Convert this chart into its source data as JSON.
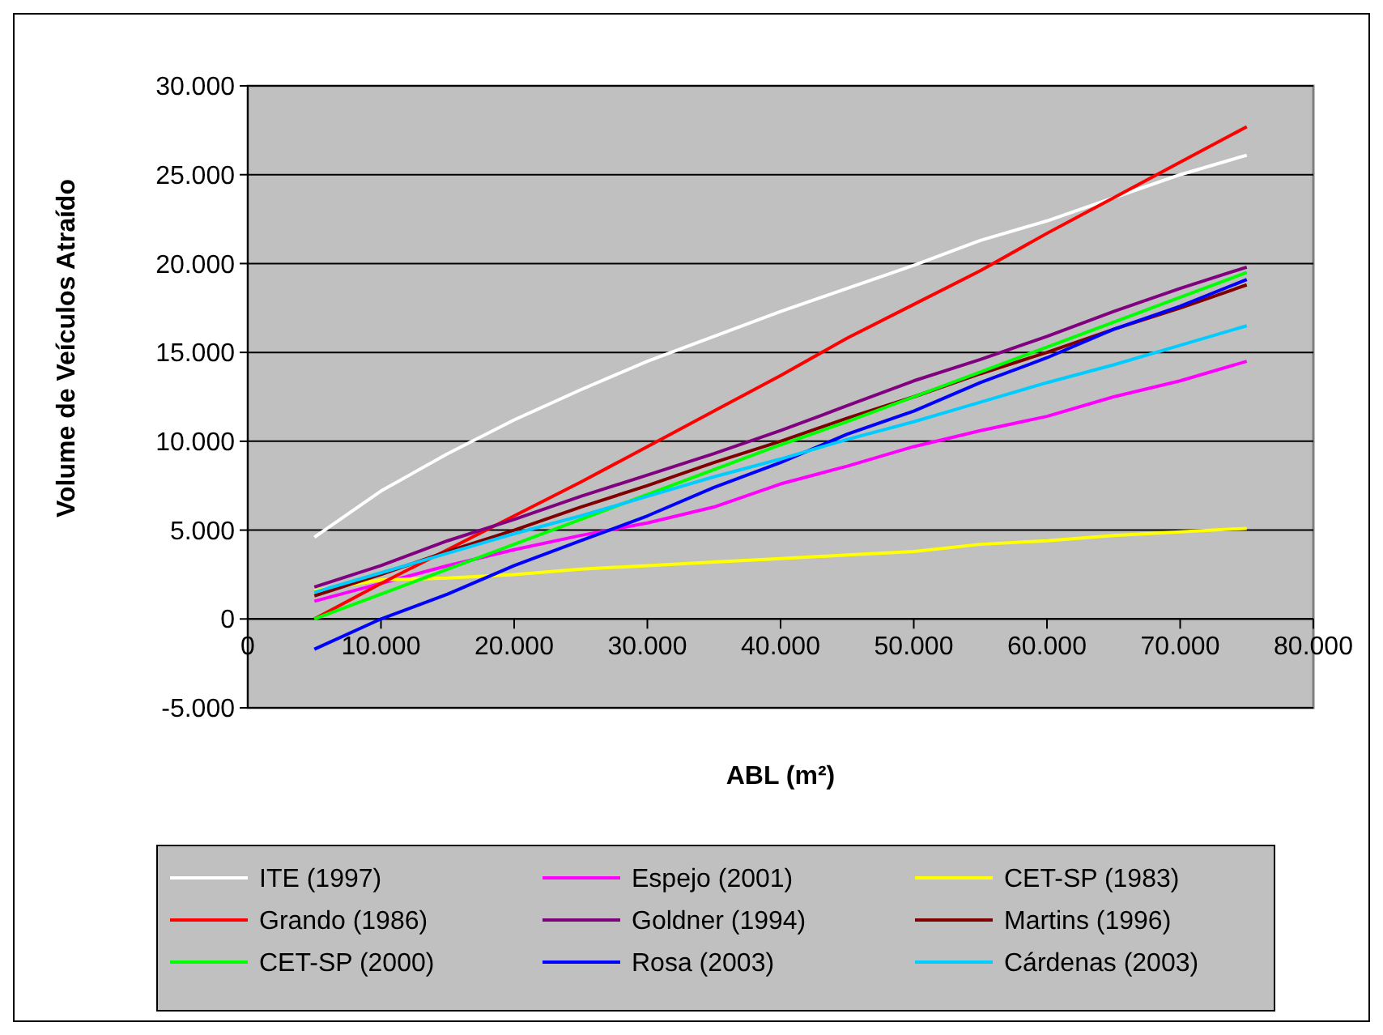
{
  "chart_data": {
    "type": "line",
    "xlabel": "ABL (m²)",
    "ylabel": "Volume de Veículos Atraído",
    "x": [
      5000,
      10000,
      15000,
      20000,
      25000,
      30000,
      35000,
      40000,
      45000,
      50000,
      55000,
      60000,
      65000,
      70000,
      75000
    ],
    "xlim": [
      0,
      80000
    ],
    "xticks": [
      0,
      {
        "value": 10000,
        "label": "10.000"
      },
      {
        "value": 20000,
        "label": "20.000"
      },
      {
        "value": 30000,
        "label": "30.000"
      },
      {
        "value": 40000,
        "label": "40.000"
      },
      {
        "value": 50000,
        "label": "50.000"
      },
      {
        "value": 60000,
        "label": "60.000"
      },
      {
        "value": 70000,
        "label": "70.000"
      },
      {
        "value": 80000,
        "label": "80.000"
      }
    ],
    "ylim": [
      -5000,
      30000
    ],
    "yticks": [
      {
        "value": -5000,
        "label": "-5.000"
      },
      0,
      {
        "value": 5000,
        "label": "5.000"
      },
      {
        "value": 10000,
        "label": "10.000"
      },
      {
        "value": 15000,
        "label": "15.000"
      },
      {
        "value": 20000,
        "label": "20.000"
      },
      {
        "value": 25000,
        "label": "25.000"
      },
      {
        "value": 30000,
        "label": "30.000"
      }
    ],
    "grid": "y",
    "legend": "bottom",
    "marker": "none",
    "line_style": "solid",
    "series": [
      {
        "name": "ITE (1997)",
        "color": "#ffffff",
        "values": [
          4600,
          7200,
          9300,
          11200,
          12900,
          14500,
          15900,
          17300,
          18600,
          19900,
          21300,
          22400,
          23700,
          25000,
          26100
        ]
      },
      {
        "name": "Espejo (2001)",
        "color": "#ff00ff",
        "values": [
          1000,
          2000,
          3000,
          3900,
          4700,
          5400,
          6300,
          7600,
          8600,
          9700,
          10600,
          11400,
          12500,
          13400,
          14500
        ]
      },
      {
        "name": "CET-SP (1983)",
        "color": "#ffff00",
        "values": [
          1600,
          2200,
          2300,
          2500,
          2800,
          3000,
          3200,
          3400,
          3600,
          3800,
          4200,
          4400,
          4700,
          4900,
          5100
        ]
      },
      {
        "name": "Grando (1986)",
        "color": "#ff0000",
        "values": [
          0,
          2000,
          3900,
          5800,
          7700,
          9700,
          11700,
          13700,
          15800,
          17700,
          19600,
          21700,
          23700,
          25700,
          27700
        ]
      },
      {
        "name": "Goldner (1994)",
        "color": "#800080",
        "values": [
          1800,
          3000,
          4400,
          5600,
          6900,
          8100,
          9300,
          10600,
          12000,
          13400,
          14600,
          15900,
          17300,
          18600,
          19800
        ]
      },
      {
        "name": "Martins (1996)",
        "color": "#800000",
        "values": [
          1300,
          2500,
          3800,
          5000,
          6300,
          7500,
          8800,
          10000,
          11300,
          12500,
          13800,
          15000,
          16300,
          17500,
          18800
        ]
      },
      {
        "name": "CET-SP (2000)",
        "color": "#00ff00",
        "values": [
          0,
          1400,
          2800,
          4200,
          5600,
          7000,
          8400,
          9800,
          11100,
          12500,
          13900,
          15300,
          16700,
          18100,
          19500
        ]
      },
      {
        "name": "Rosa (2003)",
        "color": "#0000ff",
        "values": [
          -1700,
          0,
          1400,
          3000,
          4400,
          5800,
          7400,
          8800,
          10400,
          11700,
          13300,
          14700,
          16300,
          17600,
          19100
        ]
      },
      {
        "name": "Cárdenas (2003)",
        "color": "#00ccff",
        "values": [
          1500,
          2600,
          3700,
          4800,
          5800,
          6900,
          8000,
          9000,
          10100,
          11100,
          12200,
          13300,
          14300,
          15400,
          16500
        ]
      }
    ]
  }
}
